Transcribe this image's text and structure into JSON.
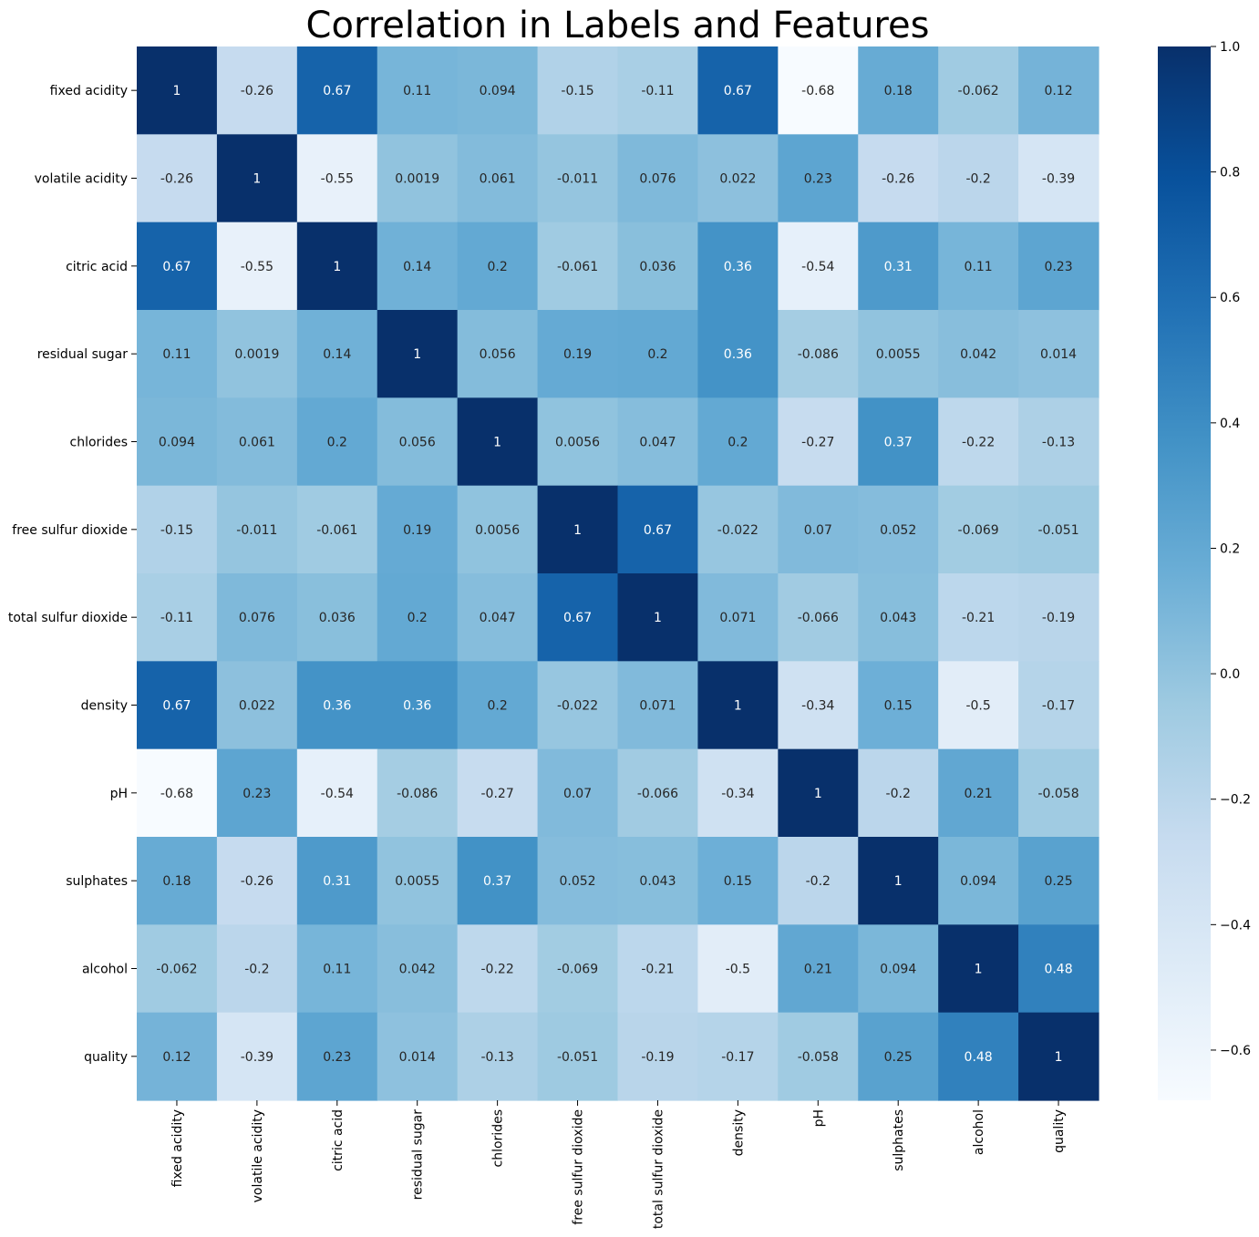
{
  "chart_data": {
    "type": "heatmap",
    "title": "Correlation in Labels and Features",
    "labels": [
      "fixed acidity",
      "volatile acidity",
      "citric acid",
      "residual sugar",
      "chlorides",
      "free sulfur dioxide",
      "total sulfur dioxide",
      "density",
      "pH",
      "sulphates",
      "alcohol",
      "quality"
    ],
    "values": [
      [
        "1",
        "-0.26",
        "0.67",
        "0.11",
        "0.094",
        "-0.15",
        "-0.11",
        "0.67",
        "-0.68",
        "0.18",
        "-0.062",
        "0.12"
      ],
      [
        "-0.26",
        "1",
        "-0.55",
        "0.0019",
        "0.061",
        "-0.011",
        "0.076",
        "0.022",
        "0.23",
        "-0.26",
        "-0.2",
        "-0.39"
      ],
      [
        "0.67",
        "-0.55",
        "1",
        "0.14",
        "0.2",
        "-0.061",
        "0.036",
        "0.36",
        "-0.54",
        "0.31",
        "0.11",
        "0.23"
      ],
      [
        "0.11",
        "0.0019",
        "0.14",
        "1",
        "0.056",
        "0.19",
        "0.2",
        "0.36",
        "-0.086",
        "0.0055",
        "0.042",
        "0.014"
      ],
      [
        "0.094",
        "0.061",
        "0.2",
        "0.056",
        "1",
        "0.0056",
        "0.047",
        "0.2",
        "-0.27",
        "0.37",
        "-0.22",
        "-0.13"
      ],
      [
        "-0.15",
        "-0.011",
        "-0.061",
        "0.19",
        "0.0056",
        "1",
        "0.67",
        "-0.022",
        "0.07",
        "0.052",
        "-0.069",
        "-0.051"
      ],
      [
        "-0.11",
        "0.076",
        "0.036",
        "0.2",
        "0.047",
        "0.67",
        "1",
        "0.071",
        "-0.066",
        "0.043",
        "-0.21",
        "-0.19"
      ],
      [
        "0.67",
        "0.022",
        "0.36",
        "0.36",
        "0.2",
        "-0.022",
        "0.071",
        "1",
        "-0.34",
        "0.15",
        "-0.5",
        "-0.17"
      ],
      [
        "-0.68",
        "0.23",
        "-0.54",
        "-0.086",
        "-0.27",
        "0.07",
        "-0.066",
        "-0.34",
        "1",
        "-0.2",
        "0.21",
        "-0.058"
      ],
      [
        "0.18",
        "-0.26",
        "0.31",
        "0.0055",
        "0.37",
        "0.052",
        "0.043",
        "0.15",
        "-0.2",
        "1",
        "0.094",
        "0.25"
      ],
      [
        "-0.062",
        "-0.2",
        "0.11",
        "0.042",
        "-0.22",
        "-0.069",
        "-0.21",
        "-0.5",
        "0.21",
        "0.094",
        "1",
        "0.48"
      ],
      [
        "0.12",
        "-0.39",
        "0.23",
        "0.014",
        "-0.13",
        "-0.051",
        "-0.19",
        "-0.17",
        "-0.058",
        "0.25",
        "0.48",
        "1"
      ]
    ],
    "colorbar": {
      "vmin": -0.68,
      "vmax": 1,
      "ticks": [
        "1.0",
        "0.8",
        "0.6",
        "0.4",
        "0.2",
        "0.0",
        "−0.2",
        "−0.4",
        "−0.6"
      ],
      "colormap": "Blues",
      "colors": [
        "#f7fbff",
        "#deebf7",
        "#c6dbef",
        "#9ecae1",
        "#6baed6",
        "#4292c6",
        "#2171b5",
        "#08519c",
        "#08306b"
      ]
    },
    "annotations": true,
    "grid": false
  }
}
